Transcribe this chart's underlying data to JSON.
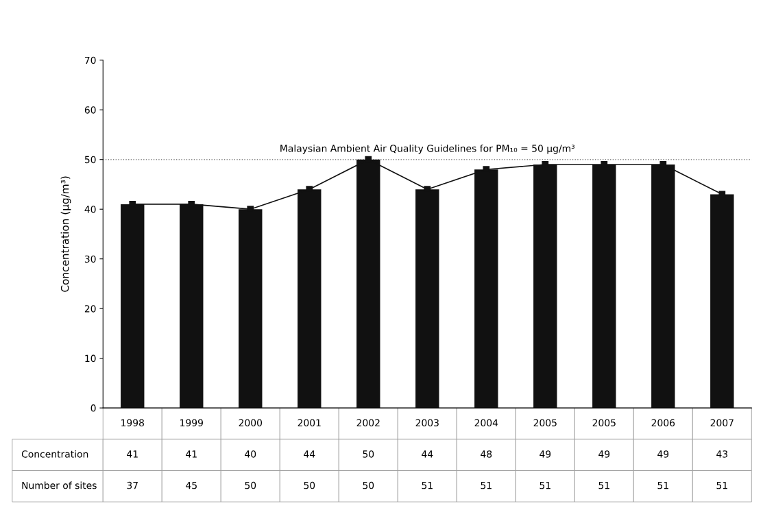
{
  "chart_data": {
    "type": "bar",
    "ylabel": "Concentration (µg/m³)",
    "categories": [
      "1998",
      "1999",
      "2000",
      "2001",
      "2002",
      "2003",
      "2004",
      "2005",
      "2005",
      "2006",
      "2007"
    ],
    "series": [
      {
        "name": "Concentration",
        "color": "#111111",
        "values": [
          41,
          41,
          40,
          44,
          50,
          44,
          48,
          49,
          49,
          49,
          43
        ],
        "value_labels": [
          "41",
          "41",
          "40",
          "44",
          "50",
          "44",
          "48",
          "49",
          "49",
          "49",
          "43"
        ]
      },
      {
        "type": "line",
        "color": "#111111",
        "marker": "square",
        "values": [
          41,
          41,
          40,
          44,
          50,
          44,
          48,
          49,
          49,
          49,
          43
        ]
      }
    ],
    "annotations": [
      "Number of sites",
      "37",
      "45",
      "50",
      "50",
      "50",
      "51",
      "51",
      "51",
      "51",
      "51",
      "51"
    ],
    "ylim": [
      0,
      70
    ],
    "yticks": [
      0,
      10,
      20,
      30,
      40,
      50,
      60,
      70
    ],
    "ref_lines": [
      {
        "axis": "y",
        "value": 50,
        "label": "Malaysian Ambient Air Quality Guidelines for PM₁₀ = 50 µg/m³",
        "color": "#888888",
        "line_style": "dotted"
      }
    ]
  }
}
